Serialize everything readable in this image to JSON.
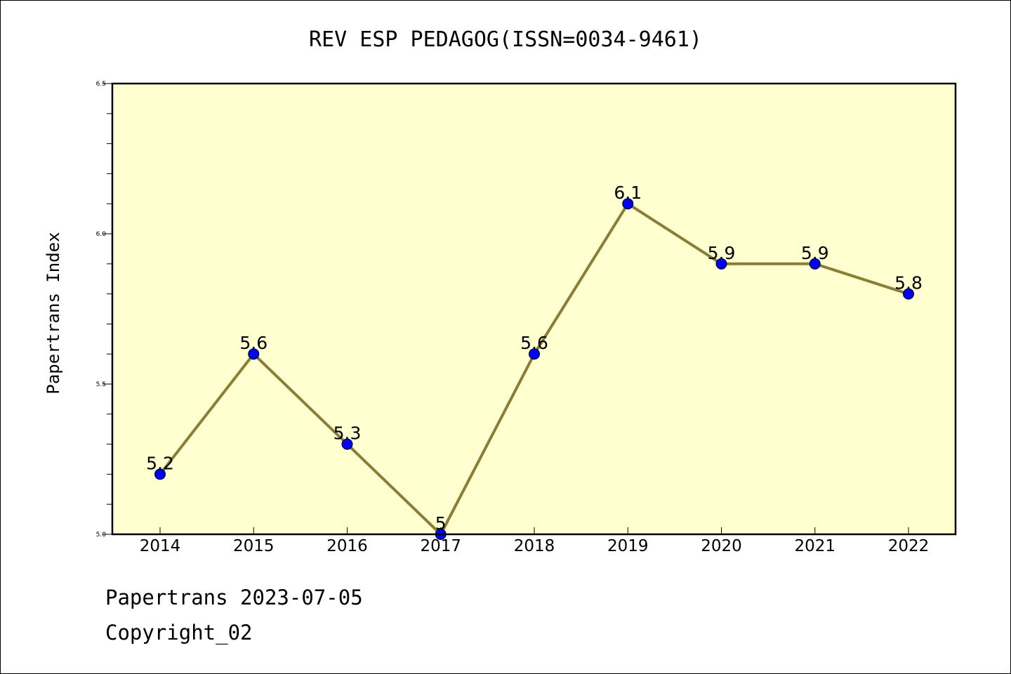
{
  "chart_data": {
    "type": "line",
    "title": "REV ESP PEDAGOG(ISSN=0034-9461)",
    "xlabel": "",
    "ylabel": "Papertrans Index",
    "categories": [
      "2014",
      "2015",
      "2016",
      "2017",
      "2018",
      "2019",
      "2020",
      "2021",
      "2022"
    ],
    "values": [
      5.2,
      5.6,
      5.3,
      5.0,
      5.6,
      6.1,
      5.9,
      5.9,
      5.8
    ],
    "data_labels": [
      "5.2",
      "5.6",
      "5.3",
      "5",
      "5.6",
      "6.1",
      "5.9",
      "5.9",
      "5.8"
    ],
    "ylim": [
      5.0,
      6.5
    ],
    "yticks": [
      "5.0",
      "5.5",
      "6.0",
      "6.5"
    ],
    "ytick_values": [
      5.0,
      5.5,
      6.0,
      6.5
    ],
    "grid": false,
    "colors": {
      "plot_background": "#ffffd0",
      "line": "#8b7d35",
      "marker": "#0000ff"
    }
  },
  "footer": {
    "date_line": "Papertrans 2023-07-05",
    "copyright": "Copyright_02"
  }
}
